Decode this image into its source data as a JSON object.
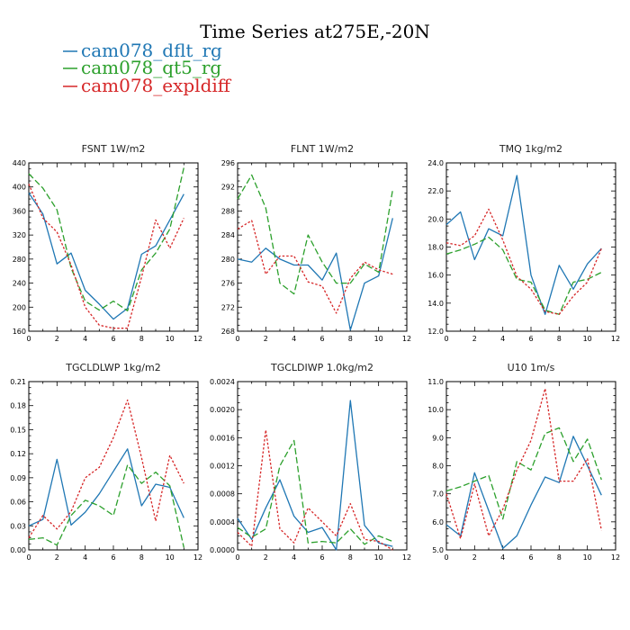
{
  "title": "Time Series at275E,-20N",
  "legend": [
    {
      "name": "cam078_dflt_rg",
      "color": "#1f77b4",
      "dash": "solid"
    },
    {
      "name": "cam078_qt5_rg",
      "color": "#2ca02c",
      "dash": "dashed"
    },
    {
      "name": "cam078_expldiff",
      "color": "#d62728",
      "dash": "dotted"
    }
  ],
  "chart_data": [
    {
      "type": "line",
      "title": "FSNT   1W/m2",
      "x": [
        0,
        1,
        2,
        3,
        4,
        5,
        6,
        7,
        8,
        9,
        10,
        11
      ],
      "xlim": [
        0,
        12
      ],
      "xticks": [
        0,
        2,
        4,
        6,
        8,
        10,
        12
      ],
      "ylim": [
        160,
        440
      ],
      "yticks": [
        "160",
        "200",
        "240",
        "280",
        "320",
        "360",
        "400",
        "440"
      ],
      "series": [
        {
          "name": "cam078_dflt_rg",
          "values": [
            390,
            355,
            272,
            290,
            228,
            205,
            180,
            198,
            288,
            302,
            345,
            388
          ]
        },
        {
          "name": "cam078_qt5_rg",
          "values": [
            422,
            398,
            362,
            265,
            210,
            195,
            210,
            194,
            262,
            290,
            330,
            432
          ]
        },
        {
          "name": "cam078_expldiff",
          "values": [
            405,
            348,
            325,
            270,
            200,
            170,
            165,
            165,
            250,
            345,
            298,
            348
          ]
        }
      ]
    },
    {
      "type": "line",
      "title": "FLNT   1W/m2",
      "x": [
        0,
        1,
        2,
        3,
        4,
        5,
        6,
        7,
        8,
        9,
        10,
        11
      ],
      "xlim": [
        0,
        12
      ],
      "xticks": [
        0,
        2,
        4,
        6,
        8,
        10,
        12
      ],
      "ylim": [
        268,
        296
      ],
      "yticks": [
        "268",
        "272",
        "276",
        "280",
        "284",
        "288",
        "292",
        "296"
      ],
      "series": [
        {
          "name": "cam078_dflt_rg",
          "values": [
            280,
            279.5,
            281.8,
            280,
            279,
            279,
            276.5,
            281,
            268.2,
            276,
            277.2,
            286.8
          ]
        },
        {
          "name": "cam078_qt5_rg",
          "values": [
            290,
            294,
            288.5,
            276,
            274.2,
            284,
            279.5,
            276,
            276,
            279.2,
            277.8,
            291.5
          ]
        },
        {
          "name": "cam078_expldiff",
          "values": [
            285,
            286.4,
            277.5,
            280.5,
            280.5,
            276.2,
            275.5,
            271,
            276.8,
            279.5,
            278.2,
            277.5
          ]
        }
      ]
    },
    {
      "type": "line",
      "title": "TMQ   1kg/m2",
      "x": [
        0,
        1,
        2,
        3,
        4,
        5,
        6,
        7,
        8,
        9,
        10,
        11
      ],
      "xlim": [
        0,
        12
      ],
      "xticks": [
        0,
        2,
        4,
        6,
        8,
        10,
        12
      ],
      "ylim": [
        12.0,
        24.0
      ],
      "yticks": [
        "12.0",
        "14.0",
        "16.0",
        "18.0",
        "20.0",
        "22.0",
        "24.0"
      ],
      "series": [
        {
          "name": "cam078_dflt_rg",
          "values": [
            19.6,
            20.5,
            17.1,
            19.3,
            18.8,
            23.1,
            16.0,
            13.2,
            16.7,
            15.0,
            16.8,
            17.9
          ]
        },
        {
          "name": "cam078_qt5_rg",
          "values": [
            17.5,
            17.8,
            18.2,
            18.7,
            17.8,
            15.7,
            15.5,
            13.5,
            13.2,
            15.5,
            15.7,
            16.2
          ]
        },
        {
          "name": "cam078_expldiff",
          "values": [
            18.3,
            18.1,
            18.8,
            20.7,
            18.5,
            15.9,
            15.0,
            13.4,
            13.2,
            14.5,
            15.5,
            17.9
          ]
        }
      ]
    },
    {
      "type": "line",
      "title": "TGCLDLWP   1kg/m2",
      "x": [
        0,
        1,
        2,
        3,
        4,
        5,
        6,
        7,
        8,
        9,
        10,
        11
      ],
      "xlim": [
        0,
        12
      ],
      "xticks": [
        0,
        2,
        4,
        6,
        8,
        10,
        12
      ],
      "ylim": [
        0.0,
        0.21
      ],
      "yticks": [
        "0.00",
        "0.03",
        "0.06",
        "0.09",
        "0.12",
        "0.15",
        "0.18",
        "0.21"
      ],
      "series": [
        {
          "name": "cam078_dflt_rg",
          "values": [
            0.03,
            0.038,
            0.113,
            0.031,
            0.047,
            0.07,
            0.098,
            0.126,
            0.055,
            0.082,
            0.078,
            0.04
          ]
        },
        {
          "name": "cam078_qt5_rg",
          "values": [
            0.013,
            0.015,
            0.006,
            0.043,
            0.062,
            0.055,
            0.043,
            0.106,
            0.083,
            0.097,
            0.08,
            0.003
          ]
        },
        {
          "name": "cam078_expldiff",
          "values": [
            0.015,
            0.043,
            0.026,
            0.048,
            0.09,
            0.103,
            0.14,
            0.187,
            0.115,
            0.036,
            0.118,
            0.083
          ]
        }
      ]
    },
    {
      "type": "line",
      "title": "TGCLDIWP   1.0kg/m2",
      "x": [
        0,
        1,
        2,
        3,
        4,
        5,
        6,
        7,
        8,
        9,
        10,
        11
      ],
      "xlim": [
        0,
        12
      ],
      "xticks": [
        0,
        2,
        4,
        6,
        8,
        10,
        12
      ],
      "ylim": [
        0.0,
        0.0024
      ],
      "yticks": [
        "0.0000",
        "0.0004",
        "0.0008",
        "0.0012",
        "0.0016",
        "0.0020",
        "0.0024"
      ],
      "series": [
        {
          "name": "cam078_dflt_rg",
          "values": [
            0.00045,
            0.00015,
            0.0006,
            0.001,
            0.00048,
            0.00025,
            0.00032,
            0.0,
            0.00213,
            0.00035,
            0.0001,
            5e-05
          ]
        },
        {
          "name": "cam078_qt5_rg",
          "values": [
            0.00032,
            0.00018,
            0.0003,
            0.0012,
            0.00156,
            0.0001,
            0.00012,
            0.0001,
            0.0003,
            8e-05,
            0.0002,
            0.00012
          ]
        },
        {
          "name": "cam078_expldiff",
          "values": [
            0.00025,
            5e-05,
            0.00171,
            0.0003,
            0.0001,
            0.0006,
            0.0004,
            0.0002,
            0.00066,
            0.00015,
            0.00012,
            0.0
          ]
        }
      ]
    },
    {
      "type": "line",
      "title": "U10   1m/s",
      "x": [
        0,
        1,
        2,
        3,
        4,
        5,
        6,
        7,
        8,
        9,
        10,
        11
      ],
      "xlim": [
        0,
        12
      ],
      "xticks": [
        0,
        2,
        4,
        6,
        8,
        10,
        12
      ],
      "ylim": [
        5.0,
        11.0
      ],
      "yticks": [
        "5.0",
        "6.0",
        "7.0",
        "8.0",
        "9.0",
        "10.0",
        "11.0"
      ],
      "series": [
        {
          "name": "cam078_dflt_rg",
          "values": [
            5.9,
            5.5,
            7.75,
            6.4,
            5.05,
            5.5,
            6.6,
            7.6,
            7.4,
            9.05,
            8.0,
            6.95
          ]
        },
        {
          "name": "cam078_qt5_rg",
          "values": [
            7.1,
            7.25,
            7.45,
            7.65,
            6.1,
            8.15,
            7.85,
            9.15,
            9.35,
            8.15,
            8.95,
            7.5
          ]
        },
        {
          "name": "cam078_expldiff",
          "values": [
            7.0,
            5.4,
            7.35,
            5.5,
            6.45,
            7.85,
            8.9,
            10.75,
            7.45,
            7.45,
            8.25,
            5.7
          ]
        }
      ]
    }
  ]
}
